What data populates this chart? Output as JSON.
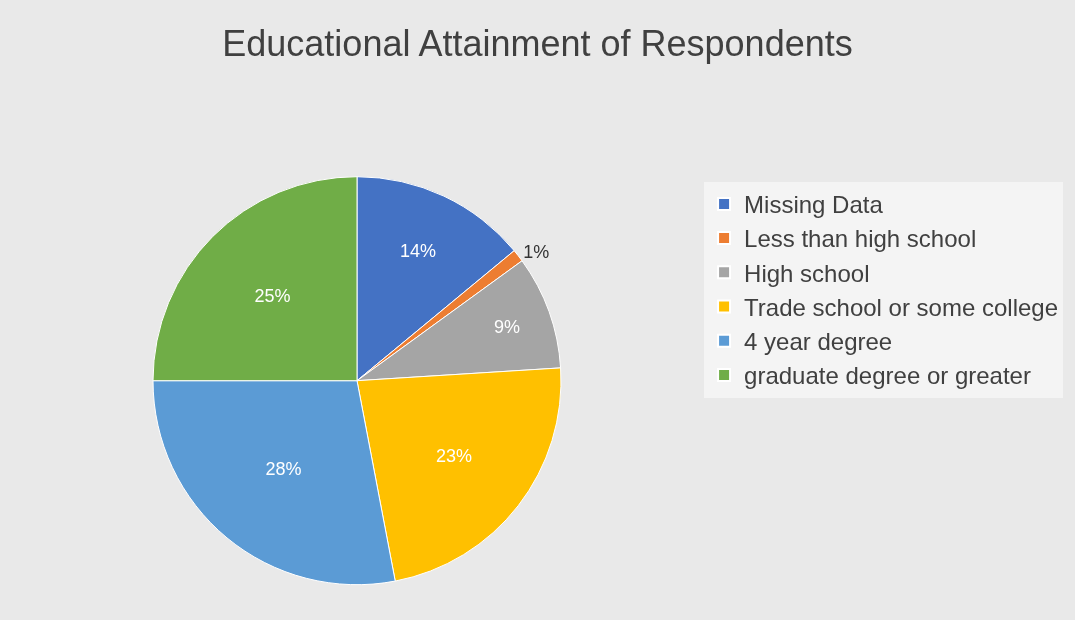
{
  "chart_data": {
    "type": "pie",
    "title": "Educational Attainment of Respondents",
    "categories": [
      "Missing Data",
      "Less than high school",
      "High school",
      "Trade school or some college",
      "4 year degree",
      "graduate degree or greater"
    ],
    "values": [
      14,
      1,
      9,
      23,
      28,
      25
    ],
    "value_labels": [
      "14%",
      "1%",
      "9%",
      "23%",
      "28%",
      "25%"
    ],
    "colors": [
      "#4472c4",
      "#ed7d31",
      "#a5a5a5",
      "#ffc000",
      "#5b9bd5",
      "#70ad47"
    ],
    "legend": "right"
  }
}
